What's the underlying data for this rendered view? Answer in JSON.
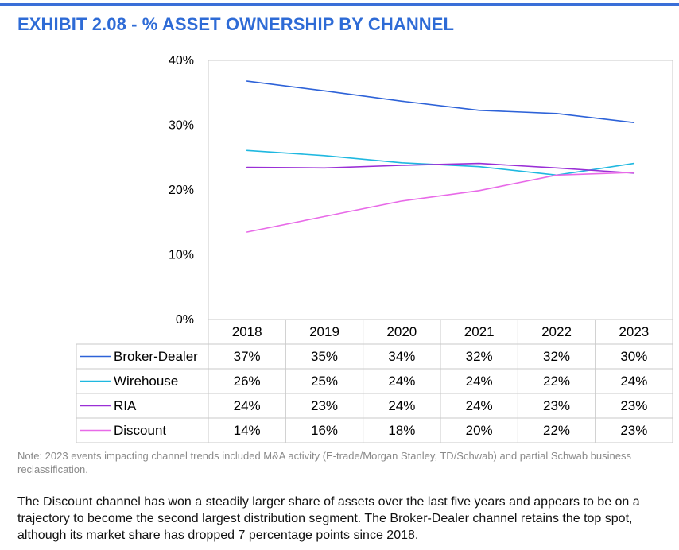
{
  "header": {
    "title": "EXHIBIT 2.08 - % ASSET OWNERSHIP BY CHANNEL"
  },
  "chart_data": {
    "type": "line",
    "title": "EXHIBIT 2.08 - % ASSET OWNERSHIP BY CHANNEL",
    "categories": [
      "2018",
      "2019",
      "2020",
      "2021",
      "2022",
      "2023"
    ],
    "ylim": [
      0,
      40
    ],
    "yticks": [
      "0%",
      "10%",
      "20%",
      "30%",
      "40%"
    ],
    "grid": false,
    "legend": "data-table-left",
    "series": [
      {
        "name": "Broker-Dealer",
        "color": "#2d62d8",
        "values": [
          36.8,
          35.3,
          33.7,
          32.3,
          31.8,
          30.4
        ],
        "labels": [
          "37%",
          "35%",
          "34%",
          "32%",
          "32%",
          "30%"
        ]
      },
      {
        "name": "Wirehouse",
        "color": "#1fb8e0",
        "values": [
          26.1,
          25.3,
          24.2,
          23.6,
          22.3,
          24.1
        ],
        "labels": [
          "26%",
          "25%",
          "24%",
          "24%",
          "22%",
          "24%"
        ]
      },
      {
        "name": "RIA",
        "color": "#9a2fd6",
        "values": [
          23.5,
          23.4,
          23.8,
          24.1,
          23.4,
          22.6
        ],
        "labels": [
          "24%",
          "23%",
          "24%",
          "24%",
          "23%",
          "23%"
        ]
      },
      {
        "name": "Discount",
        "color": "#e86ae8",
        "values": [
          13.5,
          15.9,
          18.3,
          19.9,
          22.3,
          22.7
        ],
        "labels": [
          "14%",
          "16%",
          "18%",
          "20%",
          "22%",
          "23%"
        ]
      }
    ]
  },
  "note": "Note: 2023 events impacting channel trends included M&A activity (E-trade/Morgan Stanley, TD/Schwab) and partial Schwab business reclassification.",
  "body_text": "The Discount channel has won a steadily larger share of assets over the last five years and appears to be on a trajectory to become the second largest distribution segment. The Broker-Dealer channel retains the top spot, although its market share has dropped 7 percentage points since 2018."
}
